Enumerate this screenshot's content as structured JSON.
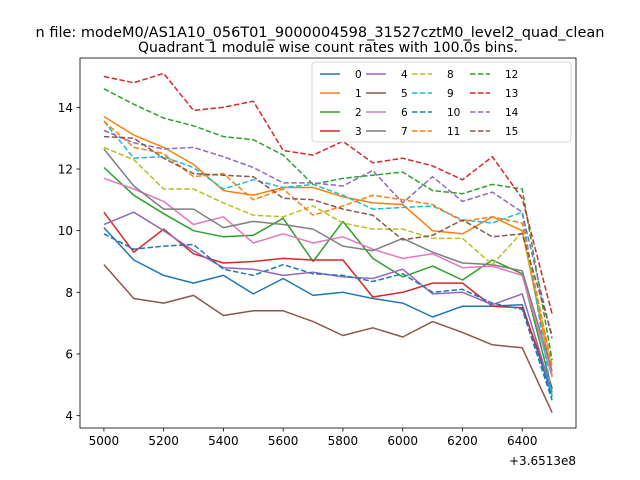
{
  "chart_data": {
    "type": "line",
    "suptitle": "n file: modeM0/AS1A10_056T01_9000004598_31527cztM0_level2_quad_clean",
    "title": "Quadrant 1 module wise count rates with 100.0s bins.",
    "xlabel": "",
    "ylabel": "",
    "x_offset_label": "+3.6513e8",
    "x_offset": 365130000,
    "x": [
      5000,
      5100,
      5200,
      5300,
      5400,
      5500,
      5600,
      5700,
      5800,
      5900,
      6000,
      6100,
      6200,
      6300,
      6400,
      6500
    ],
    "xlim": [
      4920,
      6580
    ],
    "ylim": [
      3.6,
      15.6
    ],
    "xticks": [
      5000,
      5200,
      5400,
      5600,
      5800,
      6000,
      6200,
      6400
    ],
    "yticks": [
      4,
      6,
      8,
      10,
      12,
      14
    ],
    "legend_position": "top-right",
    "series": [
      {
        "name": "0",
        "color": "#1f77b4",
        "dash": "solid",
        "values": [
          10.1,
          9.05,
          8.55,
          8.3,
          8.55,
          7.95,
          8.45,
          7.9,
          8.0,
          7.8,
          7.65,
          7.2,
          7.55,
          7.55,
          7.6,
          4.65
        ]
      },
      {
        "name": "1",
        "color": "#ff7f0e",
        "dash": "solid",
        "values": [
          13.7,
          13.1,
          12.7,
          12.15,
          11.3,
          11.15,
          11.4,
          11.4,
          11.1,
          10.9,
          10.85,
          10.0,
          9.9,
          10.45,
          10.0,
          5.3
        ]
      },
      {
        "name": "2",
        "color": "#2ca02c",
        "dash": "solid",
        "values": [
          12.05,
          11.15,
          10.55,
          10.0,
          9.8,
          9.85,
          10.4,
          9.0,
          10.3,
          9.1,
          8.5,
          8.85,
          8.4,
          9.05,
          8.6,
          4.85
        ]
      },
      {
        "name": "3",
        "color": "#d62728",
        "dash": "solid",
        "values": [
          10.6,
          9.3,
          10.05,
          9.25,
          8.95,
          9.0,
          9.1,
          9.05,
          9.05,
          7.85,
          8.0,
          8.3,
          8.3,
          7.55,
          7.5,
          4.9
        ]
      },
      {
        "name": "4",
        "color": "#9467bd",
        "dash": "solid",
        "values": [
          10.2,
          10.6,
          10.0,
          9.35,
          8.8,
          8.75,
          8.55,
          8.65,
          8.5,
          8.45,
          8.75,
          7.95,
          8.0,
          7.6,
          7.95,
          4.75
        ]
      },
      {
        "name": "5",
        "color": "#8c564b",
        "dash": "solid",
        "values": [
          8.9,
          7.8,
          7.65,
          7.9,
          7.25,
          7.4,
          7.4,
          7.05,
          6.6,
          6.85,
          6.55,
          7.05,
          6.7,
          6.3,
          6.2,
          4.1
        ]
      },
      {
        "name": "6",
        "color": "#e377c2",
        "dash": "solid",
        "values": [
          11.7,
          11.35,
          10.95,
          10.2,
          10.45,
          9.6,
          9.9,
          9.6,
          9.8,
          9.4,
          9.1,
          9.25,
          8.8,
          8.85,
          8.55,
          5.25
        ]
      },
      {
        "name": "7",
        "color": "#7f7f7f",
        "dash": "solid",
        "values": [
          12.65,
          11.45,
          10.7,
          10.7,
          10.1,
          10.3,
          10.2,
          10.05,
          9.5,
          9.35,
          9.75,
          9.3,
          8.95,
          8.9,
          8.7,
          5.45
        ]
      },
      {
        "name": "8",
        "color": "#bcbd22",
        "dash": "dashed",
        "values": [
          12.7,
          12.3,
          11.35,
          11.35,
          10.9,
          10.5,
          10.45,
          10.8,
          10.25,
          10.05,
          10.05,
          9.75,
          9.75,
          8.9,
          9.95,
          5.65
        ]
      },
      {
        "name": "9",
        "color": "#17becf",
        "dash": "dashed",
        "values": [
          13.55,
          12.35,
          12.4,
          12.05,
          11.35,
          11.65,
          11.4,
          11.5,
          11.15,
          10.7,
          10.75,
          10.8,
          10.35,
          10.25,
          10.6,
          4.6
        ]
      },
      {
        "name": "10",
        "color": "#1f77b4",
        "dash": "dashed",
        "values": [
          9.9,
          9.4,
          9.5,
          9.55,
          8.75,
          8.55,
          8.9,
          8.6,
          8.55,
          8.35,
          8.6,
          8.0,
          8.1,
          7.65,
          7.45,
          4.5
        ]
      },
      {
        "name": "11",
        "color": "#ff7f0e",
        "dash": "dashed",
        "values": [
          13.55,
          12.7,
          12.5,
          11.75,
          11.85,
          11.0,
          11.35,
          10.5,
          10.8,
          11.15,
          11.0,
          10.85,
          10.3,
          10.45,
          10.25,
          5.55
        ]
      },
      {
        "name": "12",
        "color": "#2ca02c",
        "dash": "dashed",
        "values": [
          14.6,
          14.1,
          13.65,
          13.4,
          13.05,
          12.95,
          12.45,
          11.5,
          11.7,
          11.8,
          11.9,
          11.3,
          11.2,
          11.5,
          11.35,
          5.8
        ]
      },
      {
        "name": "13",
        "color": "#d62728",
        "dash": "dashed",
        "values": [
          15.0,
          14.8,
          15.1,
          13.9,
          14.0,
          14.2,
          12.6,
          12.45,
          12.9,
          12.2,
          12.35,
          12.1,
          11.65,
          12.4,
          11.05,
          7.3
        ]
      },
      {
        "name": "14",
        "color": "#9467bd",
        "dash": "dashed",
        "values": [
          13.25,
          12.85,
          12.65,
          12.7,
          12.4,
          12.05,
          11.55,
          11.55,
          11.45,
          11.95,
          10.9,
          11.75,
          10.95,
          11.25,
          10.6,
          6.5
        ]
      },
      {
        "name": "15",
        "color": "#8c564b",
        "dash": "dashed",
        "values": [
          13.05,
          13.0,
          12.35,
          11.85,
          11.8,
          11.75,
          11.05,
          11.0,
          10.7,
          10.5,
          9.7,
          9.85,
          10.35,
          9.8,
          9.9,
          6.6
        ]
      }
    ]
  }
}
